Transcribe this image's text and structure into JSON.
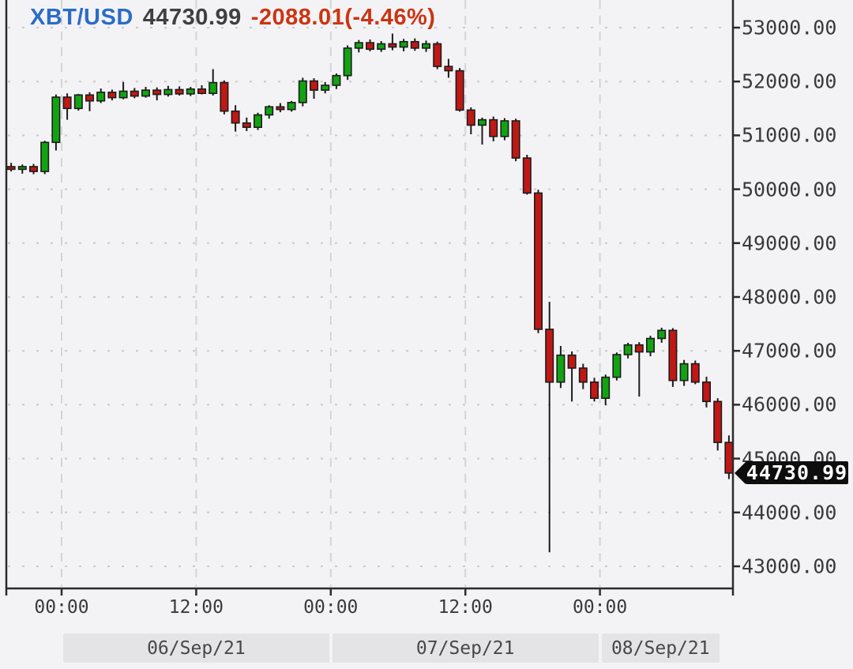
{
  "header": {
    "symbol": "XBT/USD",
    "last_price": "44730.99",
    "change": "-2088.01(-4.46%)"
  },
  "price_tag": {
    "value": "44730.99"
  },
  "colors": {
    "page_bg": "#f3f3f5",
    "up_candle": "#12a312",
    "down_candle": "#c01814",
    "candle_outline": "#1c1c1c",
    "symbol_blue": "#2b6bc9",
    "price_dark": "#3f3f3f",
    "change_red": "#cc3412",
    "axis_line": "#2b2b2b",
    "label_text": "#3a3a3a",
    "grid_horizontal": "#c9c9ce",
    "grid_vertical": "#d4d4d8",
    "band_bg": "#e4e4e6",
    "band_text": "#47474a",
    "tag_bg": "#0d0d0d",
    "tag_text": "#ffffff"
  },
  "chart_data": {
    "type": "candlestick",
    "title": "XBT/USD",
    "interval": "1h",
    "legend_position": "top-left",
    "grid": true,
    "y_axis_decimals": 2,
    "y_ticks": [
      53000,
      52000,
      51000,
      50000,
      49000,
      48000,
      47000,
      46000,
      45000,
      44000,
      43000
    ],
    "y_range_visible": [
      42600,
      53500
    ],
    "x_ticks": [
      {
        "hour": 5,
        "label": "00:00"
      },
      {
        "hour": 17,
        "label": "12:00"
      },
      {
        "hour": 29,
        "label": "00:00"
      },
      {
        "hour": 41,
        "label": "12:00"
      },
      {
        "hour": 53,
        "label": "00:00"
      }
    ],
    "day_bands": [
      {
        "label": "06/Sep/21",
        "from": 5,
        "to": 29
      },
      {
        "label": "07/Sep/21",
        "from": 29,
        "to": 53
      },
      {
        "label": "08/Sep/21",
        "from": 53,
        "to": 63.8
      }
    ],
    "candles": [
      [
        "2021-09-05 19:00",
        50420,
        50490,
        50330,
        50370
      ],
      [
        "2021-09-05 20:00",
        50370,
        50460,
        50290,
        50420
      ],
      [
        "2021-09-05 21:00",
        50420,
        50470,
        50280,
        50330
      ],
      [
        "2021-09-05 22:00",
        50330,
        50900,
        50280,
        50870
      ],
      [
        "2021-09-05 23:00",
        50870,
        51760,
        50720,
        51710
      ],
      [
        "2021-09-06 00:00",
        51710,
        51780,
        51290,
        51500
      ],
      [
        "2021-09-06 01:00",
        51500,
        51770,
        51460,
        51750
      ],
      [
        "2021-09-06 02:00",
        51750,
        51800,
        51450,
        51640
      ],
      [
        "2021-09-06 03:00",
        51640,
        51870,
        51600,
        51800
      ],
      [
        "2021-09-06 04:00",
        51800,
        51850,
        51650,
        51700
      ],
      [
        "2021-09-06 05:00",
        51700,
        51990,
        51670,
        51820
      ],
      [
        "2021-09-06 06:00",
        51820,
        51880,
        51690,
        51730
      ],
      [
        "2021-09-06 07:00",
        51730,
        51900,
        51700,
        51840
      ],
      [
        "2021-09-06 08:00",
        51840,
        51890,
        51650,
        51760
      ],
      [
        "2021-09-06 09:00",
        51760,
        51920,
        51720,
        51850
      ],
      [
        "2021-09-06 10:00",
        51850,
        51910,
        51740,
        51770
      ],
      [
        "2021-09-06 11:00",
        51770,
        51900,
        51730,
        51860
      ],
      [
        "2021-09-06 12:00",
        51860,
        51930,
        51760,
        51780
      ],
      [
        "2021-09-06 13:00",
        51780,
        52230,
        51740,
        51980
      ],
      [
        "2021-09-06 14:00",
        51980,
        52020,
        51390,
        51450
      ],
      [
        "2021-09-06 15:00",
        51450,
        51560,
        51070,
        51230
      ],
      [
        "2021-09-06 16:00",
        51230,
        51330,
        51080,
        51150
      ],
      [
        "2021-09-06 17:00",
        51150,
        51420,
        51100,
        51380
      ],
      [
        "2021-09-06 18:00",
        51380,
        51560,
        51310,
        51530
      ],
      [
        "2021-09-06 19:00",
        51530,
        51600,
        51430,
        51480
      ],
      [
        "2021-09-06 20:00",
        51480,
        51640,
        51440,
        51610
      ],
      [
        "2021-09-06 21:00",
        51610,
        52070,
        51540,
        52010
      ],
      [
        "2021-09-06 22:00",
        52010,
        52060,
        51680,
        51840
      ],
      [
        "2021-09-06 23:00",
        51840,
        51990,
        51780,
        51930
      ],
      [
        "2021-09-07 00:00",
        51930,
        52150,
        51860,
        52110
      ],
      [
        "2021-09-07 01:00",
        52110,
        52670,
        52030,
        52620
      ],
      [
        "2021-09-07 02:00",
        52620,
        52770,
        52540,
        52720
      ],
      [
        "2021-09-07 03:00",
        52720,
        52780,
        52560,
        52600
      ],
      [
        "2021-09-07 04:00",
        52600,
        52750,
        52550,
        52700
      ],
      [
        "2021-09-07 05:00",
        52700,
        52890,
        52580,
        52640
      ],
      [
        "2021-09-07 06:00",
        52640,
        52790,
        52560,
        52740
      ],
      [
        "2021-09-07 07:00",
        52740,
        52800,
        52570,
        52620
      ],
      [
        "2021-09-07 08:00",
        52620,
        52760,
        52550,
        52700
      ],
      [
        "2021-09-07 09:00",
        52700,
        52740,
        52230,
        52280
      ],
      [
        "2021-09-07 10:00",
        52280,
        52420,
        52070,
        52200
      ],
      [
        "2021-09-07 11:00",
        52200,
        52250,
        51440,
        51470
      ],
      [
        "2021-09-07 12:00",
        51470,
        51520,
        51020,
        51190
      ],
      [
        "2021-09-07 13:00",
        51190,
        51330,
        50830,
        51290
      ],
      [
        "2021-09-07 14:00",
        51290,
        51350,
        50890,
        50980
      ],
      [
        "2021-09-07 15:00",
        50980,
        51320,
        50910,
        51270
      ],
      [
        "2021-09-07 16:00",
        51270,
        51310,
        50520,
        50580
      ],
      [
        "2021-09-07 17:00",
        50580,
        50640,
        49900,
        49930
      ],
      [
        "2021-09-07 18:00",
        49930,
        49990,
        47330,
        47400
      ],
      [
        "2021-09-07 19:00",
        47400,
        47910,
        43260,
        46420
      ],
      [
        "2021-09-07 20:00",
        46420,
        47090,
        46310,
        46920
      ],
      [
        "2021-09-07 21:00",
        46920,
        46990,
        46060,
        46680
      ],
      [
        "2021-09-07 22:00",
        46680,
        46760,
        46290,
        46420
      ],
      [
        "2021-09-07 23:00",
        46420,
        46500,
        46060,
        46120
      ],
      [
        "2021-09-08 00:00",
        46120,
        46560,
        45990,
        46510
      ],
      [
        "2021-09-08 01:00",
        46510,
        46970,
        46450,
        46930
      ],
      [
        "2021-09-08 02:00",
        46930,
        47150,
        46860,
        47110
      ],
      [
        "2021-09-08 03:00",
        47110,
        47160,
        46150,
        46980
      ],
      [
        "2021-09-08 04:00",
        46980,
        47280,
        46900,
        47230
      ],
      [
        "2021-09-08 05:00",
        47230,
        47430,
        47150,
        47380
      ],
      [
        "2021-09-08 06:00",
        47380,
        47420,
        46330,
        46450
      ],
      [
        "2021-09-08 07:00",
        46450,
        46830,
        46350,
        46760
      ],
      [
        "2021-09-08 08:00",
        46760,
        46820,
        46380,
        46420
      ],
      [
        "2021-09-08 09:00",
        46420,
        46520,
        45950,
        46060
      ],
      [
        "2021-09-08 10:00",
        46060,
        46120,
        45150,
        45300
      ],
      [
        "2021-09-08 11:00",
        45300,
        45430,
        44620,
        44731
      ]
    ]
  }
}
